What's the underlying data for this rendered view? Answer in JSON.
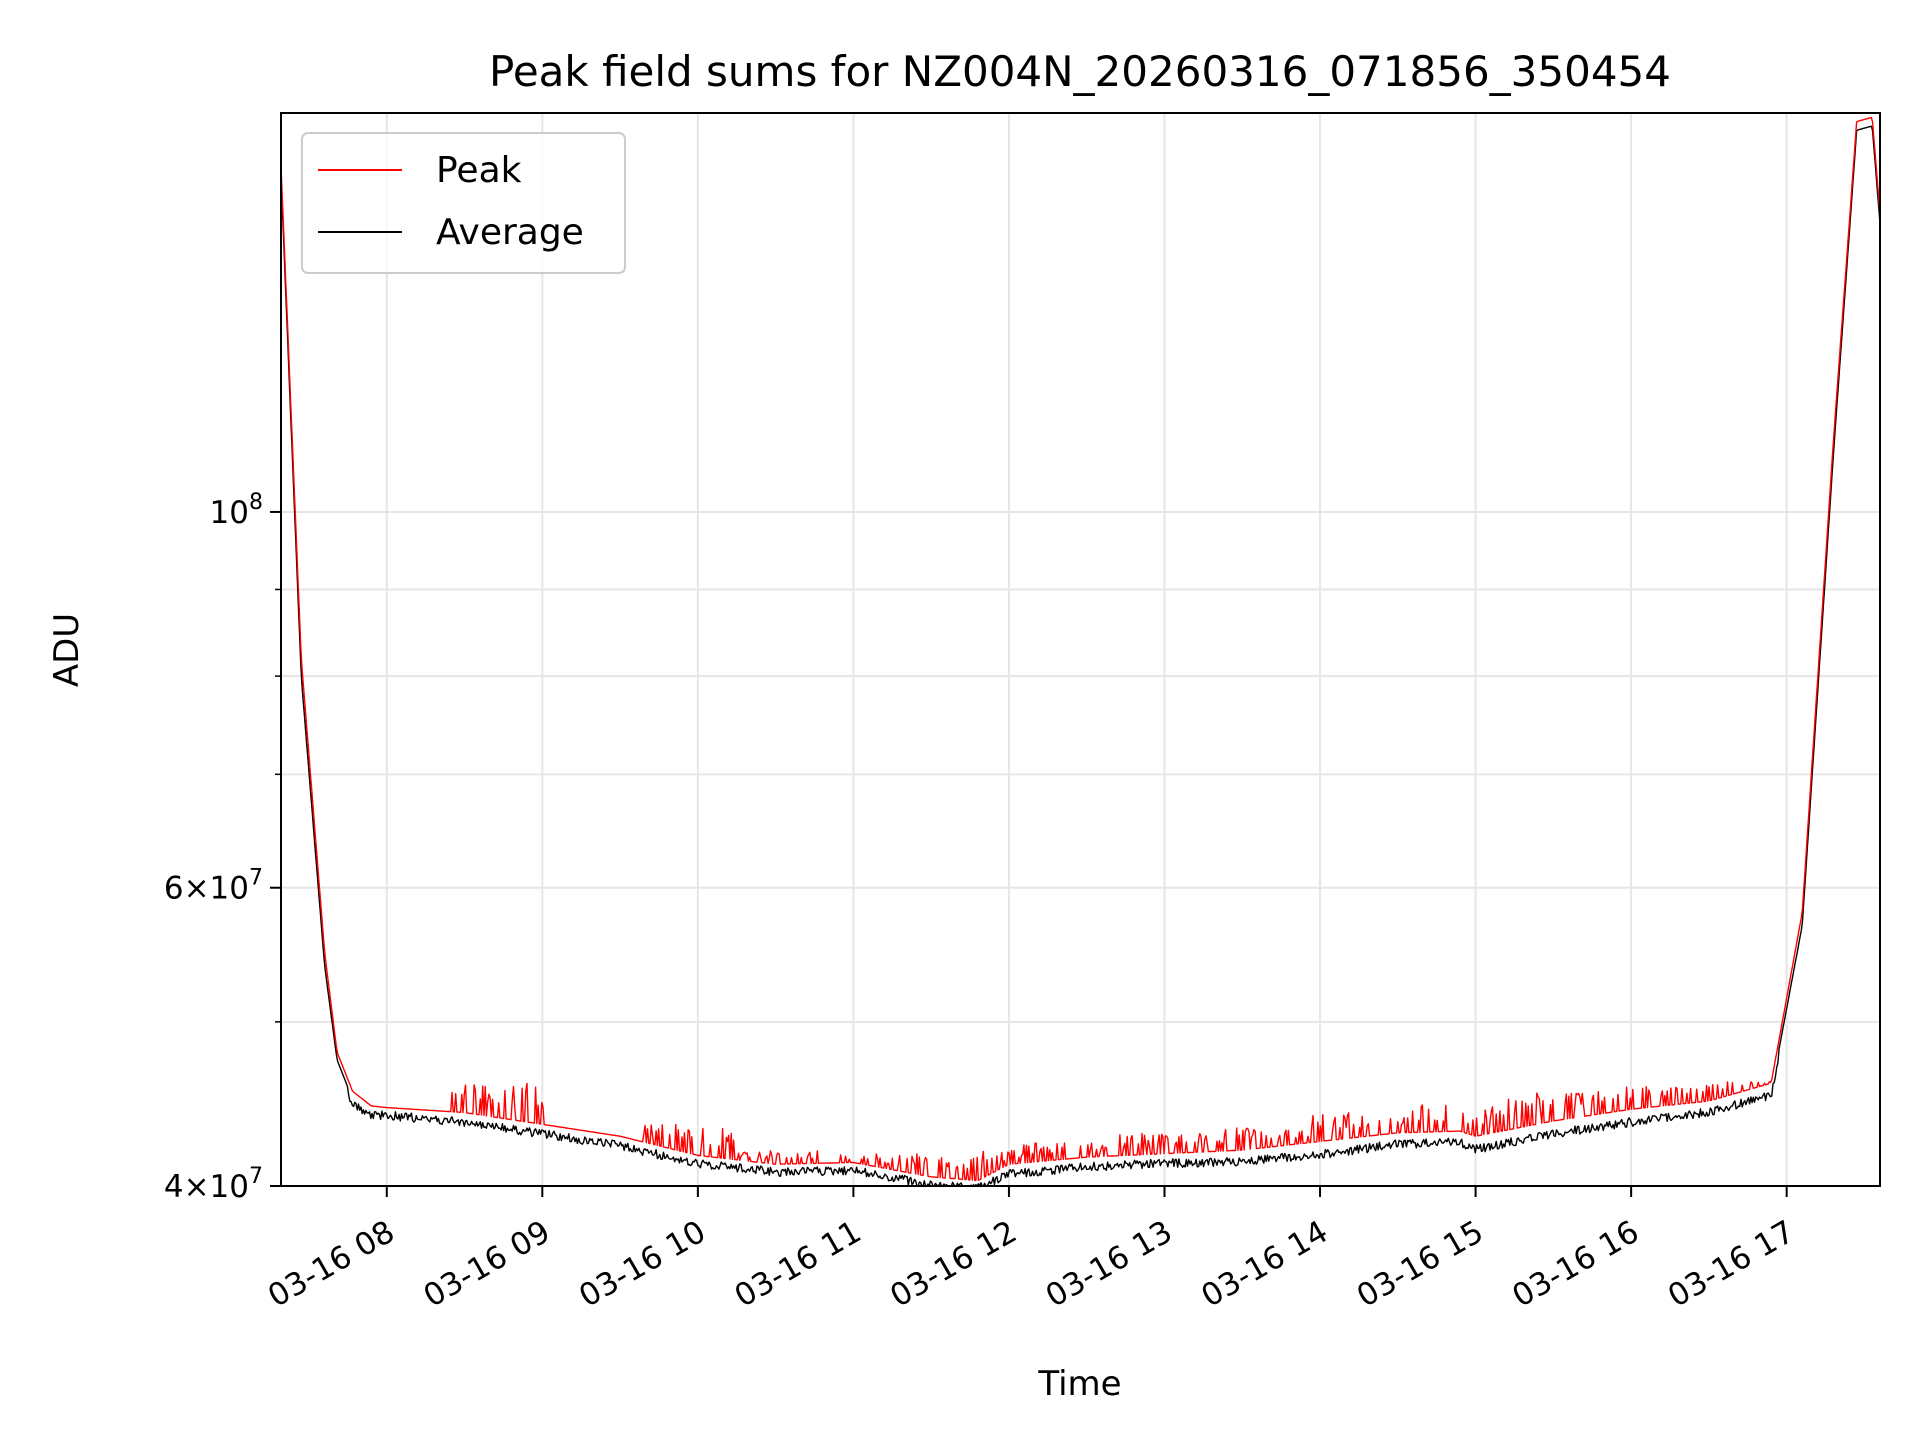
{
  "chart_data": {
    "type": "line",
    "title": "Peak field sums for NZ004N_20260316_071856_350454",
    "xlabel": "Time",
    "ylabel": "ADU",
    "y_scale": "log",
    "ylim": [
      40000000,
      172000000
    ],
    "xlim_hours": [
      7.32,
      17.6
    ],
    "x_ticks": [
      {
        "h": 8,
        "label": "03-16 08"
      },
      {
        "h": 9,
        "label": "03-16 09"
      },
      {
        "h": 10,
        "label": "03-16 10"
      },
      {
        "h": 11,
        "label": "03-16 11"
      },
      {
        "h": 12,
        "label": "03-16 12"
      },
      {
        "h": 13,
        "label": "03-16 13"
      },
      {
        "h": 14,
        "label": "03-16 14"
      },
      {
        "h": 15,
        "label": "03-16 15"
      },
      {
        "h": 16,
        "label": "03-16 16"
      },
      {
        "h": 17,
        "label": "03-16 17"
      }
    ],
    "y_major_ticks": [
      {
        "v": 40000000,
        "base": "4×10",
        "exp": "7"
      },
      {
        "v": 60000000,
        "base": "6×10",
        "exp": "7"
      },
      {
        "v": 100000000,
        "base": "10",
        "exp": "8"
      }
    ],
    "y_minor_ticks": [
      50000000,
      70000000,
      80000000,
      90000000
    ],
    "grid": true,
    "legend_position": "top-left",
    "series": [
      {
        "name": "Peak",
        "color": "#ff0000",
        "x_hours": [
          7.32,
          7.45,
          7.6,
          7.68,
          7.78,
          7.9,
          8.0,
          8.5,
          9.0,
          9.5,
          10.0,
          10.5,
          11.0,
          11.5,
          11.8,
          12.0,
          12.5,
          13.0,
          13.5,
          14.0,
          14.5,
          14.9,
          15.0,
          15.5,
          16.0,
          16.5,
          16.9,
          17.1,
          17.3,
          17.45,
          17.55,
          17.6
        ],
        "values": [
          160000000,
          82000000,
          55000000,
          48000000,
          45500000,
          44600000,
          44500000,
          44200000,
          43500000,
          42800000,
          41700000,
          41200000,
          41300000,
          40500000,
          40300000,
          41200000,
          41600000,
          41800000,
          42000000,
          42500000,
          43000000,
          43100000,
          42800000,
          43700000,
          44400000,
          44900000,
          46000000,
          58000000,
          110000000,
          170000000,
          171000000,
          150000000
        ],
        "spike_heights": [
          44000000,
          46000000,
          42500000,
          43500000,
          42000000,
          41800000,
          42000000,
          42400000,
          43000000,
          43300000,
          44200000,
          44700000,
          45400000,
          45800000,
          46100000
        ]
      },
      {
        "name": "Average",
        "color": "#000000",
        "x_hours": [
          7.32,
          7.45,
          7.6,
          7.68,
          7.78,
          7.9,
          8.0,
          8.5,
          9.0,
          9.5,
          10.0,
          10.5,
          11.0,
          11.5,
          11.8,
          12.0,
          12.5,
          13.0,
          13.5,
          14.0,
          14.5,
          14.9,
          15.0,
          15.5,
          16.0,
          16.5,
          16.9,
          17.1,
          17.3,
          17.45,
          17.55,
          17.6
        ],
        "values": [
          158000000,
          80000000,
          54000000,
          47500000,
          45000000,
          44300000,
          44300000,
          43900000,
          43200000,
          42500000,
          41500000,
          41000000,
          41100000,
          40300000,
          40100000,
          40900000,
          41300000,
          41500000,
          41600000,
          42000000,
          42600000,
          42700000,
          42300000,
          43200000,
          43900000,
          44500000,
          45500000,
          57000000,
          108000000,
          168000000,
          169000000,
          148000000
        ]
      }
    ]
  }
}
